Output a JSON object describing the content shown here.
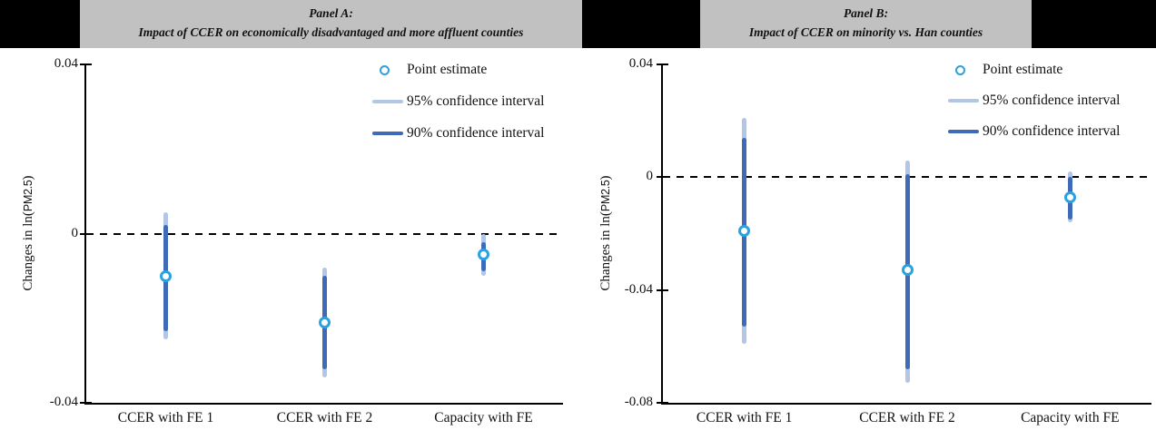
{
  "figure": {
    "ylabel_prefix": "Changes in ln(",
    "ylabel_pm": "PM2.5",
    "ylabel_suffix": ")"
  },
  "panels": [
    {
      "title": "Panel A:",
      "subtitle": "Impact of CCER on economically disadvantaged and more affluent counties"
    },
    {
      "title": "Panel B:",
      "subtitle": "Impact of CCER on minority vs. Han counties"
    }
  ],
  "legend": {
    "point": "Point estimate",
    "ci95": "95% confidence interval",
    "ci90": "90% confidence interval"
  },
  "colors": {
    "header_bg": "#000000",
    "header_box": "#c1c1c1",
    "ci95": "#b3c6e7",
    "ci90": "#3f6ab8",
    "marker": "#29a2e0",
    "axis": "#000000",
    "zero_line": "#000000"
  },
  "chart_data": [
    {
      "type": "scatter",
      "title": "Panel A: Impact of CCER on economically disadvantaged and more affluent counties",
      "categories": [
        "CCER with FE 1",
        "CCER with FE 2",
        "Capacity with FE"
      ],
      "series": [
        {
          "name": "Point estimate",
          "values": [
            -0.01,
            -0.021,
            -0.005
          ]
        },
        {
          "name": "95% confidence interval",
          "ranges": [
            [
              -0.025,
              0.005
            ],
            [
              -0.034,
              -0.008
            ],
            [
              -0.01,
              0.0
            ]
          ]
        },
        {
          "name": "90% confidence interval",
          "ranges": [
            [
              -0.023,
              0.002
            ],
            [
              -0.032,
              -0.01
            ],
            [
              -0.009,
              -0.002
            ]
          ]
        }
      ],
      "xlabel": "",
      "ylabel": "Changes in ln(PM2.5)",
      "ylim": [
        -0.04,
        0.04
      ],
      "yticks": {
        "values": [
          0.04,
          0,
          -0.04
        ],
        "labels": [
          "0.04",
          "0",
          "-0.04"
        ]
      },
      "zero_reference_line": true,
      "grid": false,
      "legend_position": "top-right"
    },
    {
      "type": "scatter",
      "title": "Panel B: Impact of CCER on minority vs. Han counties",
      "categories": [
        "CCER with FE 1",
        "CCER with FE 2",
        "Capacity with FE"
      ],
      "series": [
        {
          "name": "Point estimate",
          "values": [
            -0.019,
            -0.033,
            -0.007
          ]
        },
        {
          "name": "95% confidence interval",
          "ranges": [
            [
              -0.059,
              0.021
            ],
            [
              -0.073,
              0.006
            ],
            [
              -0.016,
              0.002
            ]
          ]
        },
        {
          "name": "90% confidence interval",
          "ranges": [
            [
              -0.053,
              0.014
            ],
            [
              -0.068,
              0.001
            ],
            [
              -0.015,
              0.0
            ]
          ]
        }
      ],
      "xlabel": "",
      "ylabel": "Changes in ln(PM2.5)",
      "ylim": [
        -0.08,
        0.04
      ],
      "yticks": {
        "values": [
          0.04,
          0,
          -0.04,
          -0.08
        ],
        "labels": [
          "0.04",
          "0",
          "-0.04",
          "-0.08"
        ]
      },
      "zero_reference_line": true,
      "grid": false,
      "legend_position": "top-right"
    }
  ]
}
